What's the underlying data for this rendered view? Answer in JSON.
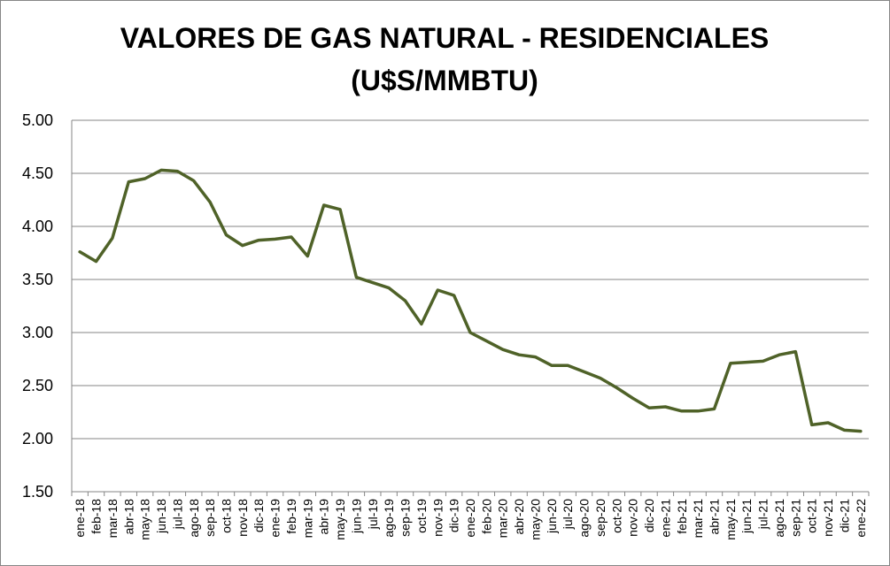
{
  "chart_data": {
    "type": "line",
    "title": "VALORES DE GAS NATURAL - RESIDENCIALES",
    "subtitle": "(U$S/MMBTU)",
    "xlabel": "",
    "ylabel": "",
    "ylim": [
      1.5,
      5.0
    ],
    "yticks": [
      "5.00",
      "4.50",
      "4.00",
      "3.50",
      "3.00",
      "2.50",
      "2.00",
      "1.50"
    ],
    "grid": true,
    "legend": "none",
    "line_color": "#4F6228",
    "categories": [
      "ene-18",
      "feb-18",
      "mar-18",
      "abr-18",
      "may-18",
      "jun-18",
      "jul-18",
      "ago-18",
      "sep-18",
      "oct-18",
      "nov-18",
      "dic-18",
      "ene-19",
      "feb-19",
      "mar-19",
      "abr-19",
      "may-19",
      "jun-19",
      "jul-19",
      "ago-19",
      "sep-19",
      "oct-19",
      "nov-19",
      "dic-19",
      "ene-20",
      "feb-20",
      "mar-20",
      "abr-20",
      "may-20",
      "jun-20",
      "jul-20",
      "ago-20",
      "sep-20",
      "oct-20",
      "nov-20",
      "dic-20",
      "ene-21",
      "feb-21",
      "mar-21",
      "abr-21",
      "may-21",
      "jun-21",
      "jul-21",
      "ago-21",
      "sep-21",
      "oct-21",
      "nov-21",
      "dic-21",
      "ene-22"
    ],
    "values": [
      3.76,
      3.67,
      3.89,
      4.42,
      4.45,
      4.53,
      4.52,
      4.43,
      4.23,
      3.92,
      3.82,
      3.87,
      3.88,
      3.9,
      3.72,
      4.2,
      4.16,
      3.52,
      3.47,
      3.42,
      3.3,
      3.08,
      3.4,
      3.35,
      3.0,
      2.92,
      2.84,
      2.79,
      2.77,
      2.69,
      2.69,
      2.63,
      2.57,
      2.48,
      2.38,
      2.29,
      2.3,
      2.26,
      2.26,
      2.28,
      2.71,
      2.72,
      2.73,
      2.79,
      2.82,
      2.13,
      2.15,
      2.08,
      2.07
    ]
  }
}
